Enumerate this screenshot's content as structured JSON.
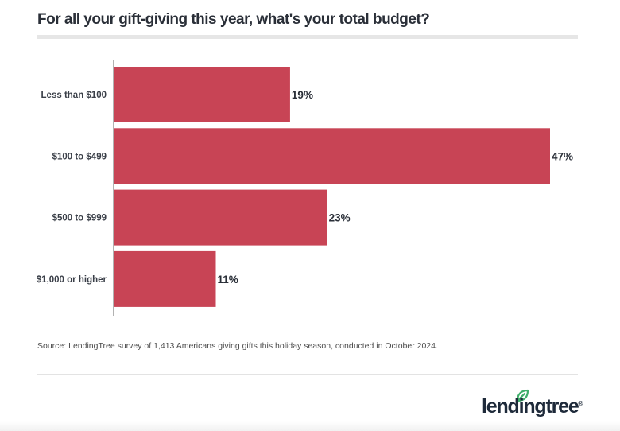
{
  "colors": {
    "bar": "#c84455",
    "axis": "#666666",
    "label_text": "#3a3f48",
    "value_text": "#2a2f38",
    "logo_text": "#1e2a3a",
    "logo_leaf": "#3fae6a"
  },
  "chart_data": {
    "type": "bar",
    "orientation": "horizontal",
    "title": "For all your gift-giving this year, what's your total budget?",
    "categories": [
      "Less than $100",
      "$100 to $499",
      "$500 to $999",
      "$1,000 or higher"
    ],
    "values": [
      19,
      47,
      23,
      11
    ],
    "value_labels": [
      "19%",
      "47%",
      "23%",
      "11%"
    ],
    "unit": "%",
    "xlabel": "",
    "ylabel": "",
    "xlim": [
      0,
      47
    ],
    "grid": false,
    "legend": "none"
  },
  "footer": {
    "source": "Source: LendingTree survey of 1,413 Americans giving gifts this holiday season, conducted in October 2024.",
    "logo_text": "lendingtree",
    "logo_mark": "®"
  }
}
